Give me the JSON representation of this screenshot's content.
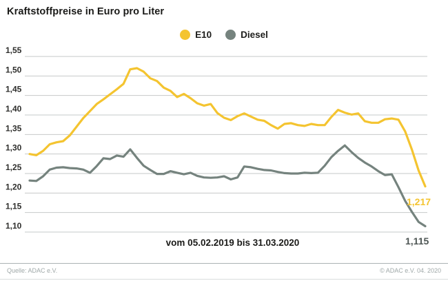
{
  "title": "Kraftstoffpreise in Euro pro Liter",
  "legend": {
    "items": [
      {
        "label": "E10",
        "color": "#F4C430"
      },
      {
        "label": "Diesel",
        "color": "#75837E"
      }
    ]
  },
  "caption": "vom 05.02.2019 bis 31.03.2020",
  "footer": {
    "source": "Quelle: ADAC e.V.",
    "copyright": "© ADAC e.V.  04. 2020"
  },
  "chart_data": {
    "type": "line",
    "title": "Kraftstoffpreise in Euro pro Liter",
    "xlabel": "vom 05.02.2019 bis 31.03.2020",
    "ylabel": "Euro pro Liter",
    "ylim": [
      1.1,
      1.55
    ],
    "grid": "horizontal",
    "grid_color": "#c6c8c8",
    "legend_position": "top-center",
    "yticks": [
      {
        "value": 1.55,
        "label": "1,55"
      },
      {
        "value": 1.5,
        "label": "1,50"
      },
      {
        "value": 1.45,
        "label": "1,45"
      },
      {
        "value": 1.4,
        "label": "1,40"
      },
      {
        "value": 1.35,
        "label": "1,35"
      },
      {
        "value": 1.3,
        "label": "1,30"
      },
      {
        "value": 1.25,
        "label": "1,25"
      },
      {
        "value": 1.2,
        "label": "1,20"
      },
      {
        "value": 1.15,
        "label": "1,15"
      },
      {
        "value": 1.1,
        "label": "1,10"
      }
    ],
    "x_period": "weekly from 05.02.2019 to 31.03.2020",
    "series": [
      {
        "name": "E10",
        "color": "#F4C430",
        "end_label": "1,217",
        "end_value": 1.217,
        "values": [
          1.3,
          1.297,
          1.308,
          1.325,
          1.33,
          1.333,
          1.348,
          1.37,
          1.392,
          1.41,
          1.428,
          1.44,
          1.453,
          1.466,
          1.48,
          1.517,
          1.52,
          1.511,
          1.494,
          1.487,
          1.47,
          1.462,
          1.446,
          1.454,
          1.443,
          1.43,
          1.424,
          1.428,
          1.405,
          1.393,
          1.387,
          1.397,
          1.404,
          1.396,
          1.388,
          1.385,
          1.374,
          1.365,
          1.377,
          1.379,
          1.374,
          1.372,
          1.377,
          1.374,
          1.374,
          1.395,
          1.413,
          1.406,
          1.401,
          1.404,
          1.384,
          1.38,
          1.38,
          1.389,
          1.391,
          1.388,
          1.358,
          1.312,
          1.258,
          1.217
        ]
      },
      {
        "name": "Diesel",
        "color": "#75837E",
        "end_label": "1,115",
        "end_value": 1.115,
        "values": [
          1.232,
          1.231,
          1.243,
          1.26,
          1.265,
          1.266,
          1.264,
          1.263,
          1.26,
          1.252,
          1.269,
          1.289,
          1.287,
          1.296,
          1.293,
          1.312,
          1.29,
          1.27,
          1.259,
          1.249,
          1.249,
          1.256,
          1.252,
          1.248,
          1.252,
          1.244,
          1.24,
          1.239,
          1.24,
          1.243,
          1.235,
          1.24,
          1.268,
          1.266,
          1.262,
          1.259,
          1.258,
          1.254,
          1.251,
          1.25,
          1.25,
          1.252,
          1.251,
          1.252,
          1.27,
          1.292,
          1.308,
          1.322,
          1.305,
          1.29,
          1.278,
          1.268,
          1.256,
          1.246,
          1.248,
          1.215,
          1.18,
          1.152,
          1.126,
          1.115
        ]
      }
    ]
  }
}
